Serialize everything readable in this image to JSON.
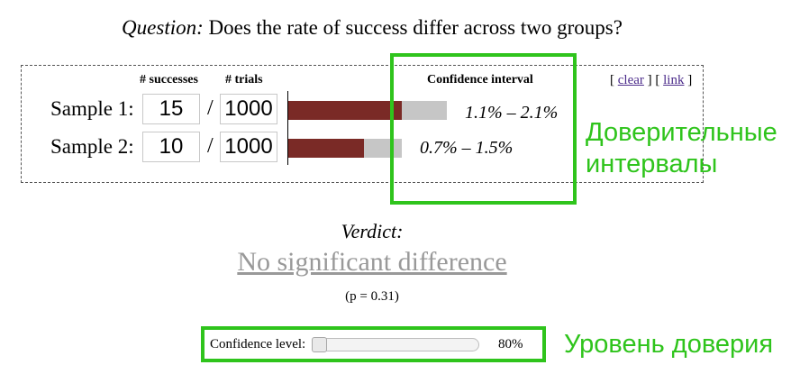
{
  "question": {
    "label": "Question:",
    "text": "Does the rate of success differ across two groups?"
  },
  "table": {
    "headers": {
      "successes": "# successes",
      "trials": "# trials",
      "confidence_interval": "Confidence interval"
    },
    "links": {
      "open": "[",
      "clear": "clear",
      "middle": "] [",
      "link": "link",
      "close": "]"
    },
    "separator": "/",
    "samples": [
      {
        "label": "Sample 1:",
        "successes": "15",
        "trials": "1000",
        "ci_text": "1.1% – 2.1%",
        "rate": 0.015,
        "ci_low": 0.011,
        "ci_high": 0.021
      },
      {
        "label": "Sample 2:",
        "successes": "10",
        "trials": "1000",
        "ci_text": "0.7% – 1.5%",
        "rate": 0.01,
        "ci_low": 0.007,
        "ci_high": 0.015
      }
    ]
  },
  "annotations": {
    "ci_note": "Доверительные интервалы",
    "level_note": "Уровень доверия",
    "color": "#2fc41c"
  },
  "verdict": {
    "label": "Verdict:",
    "text": "No significant difference",
    "p_value": "(p = 0.31)"
  },
  "confidence": {
    "label": "Confidence level:",
    "value": "80%",
    "level": 0.8
  },
  "colors": {
    "bar_fill": "#7a2a26",
    "bar_bg": "#c6c6c6",
    "verdict": "#999999",
    "link": "#4b2b8a"
  }
}
